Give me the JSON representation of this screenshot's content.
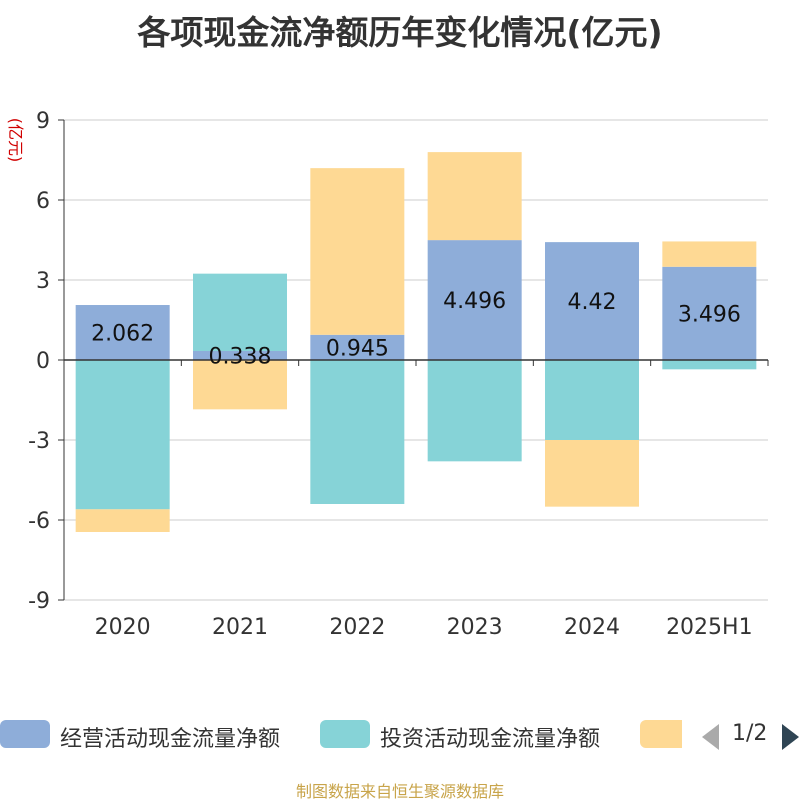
{
  "title": "各项现金流净额历年变化情况(亿元)",
  "footer": "制图数据来自恒生聚源数据库",
  "pager": {
    "text": "1/2"
  },
  "colors": {
    "operating": "#8eadd9",
    "investing": "#86d3d7",
    "financing": "#fed994",
    "axis": "#333333",
    "grid": "#cccccc",
    "unit_label": "#d00000"
  },
  "chart_data": {
    "type": "bar",
    "stacked": true,
    "title": "各项现金流净额历年变化情况(亿元)",
    "ylabel": "(亿元)",
    "ylim": [
      -9,
      9
    ],
    "yticks": [
      -9,
      -6,
      -3,
      0,
      3,
      6,
      9
    ],
    "grid": true,
    "legend_position": "bottom",
    "categories": [
      "2020",
      "2021",
      "2022",
      "2023",
      "2024",
      "2025H1"
    ],
    "series": [
      {
        "name": "经营活动现金流量净额",
        "color_key": "operating",
        "values": [
          2.062,
          0.338,
          0.945,
          4.496,
          4.42,
          3.496
        ],
        "labels": [
          "2.062",
          "0.338",
          "0.945",
          "4.496",
          "4.42",
          "3.496"
        ]
      },
      {
        "name": "投资活动现金流量净额",
        "color_key": "investing",
        "values": [
          -5.6,
          2.9,
          -5.4,
          -3.8,
          -3.0,
          -0.35
        ]
      },
      {
        "name": "",
        "color_key": "financing",
        "values": [
          -0.85,
          -1.85,
          6.25,
          3.3,
          -2.5,
          0.95
        ]
      }
    ]
  }
}
